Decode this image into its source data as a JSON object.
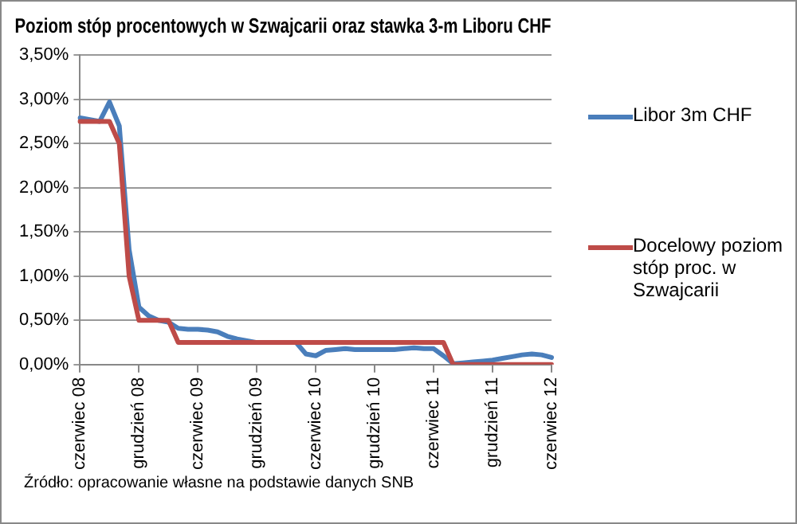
{
  "chart_data": {
    "type": "line",
    "title": "Poziom stóp procentowych w Szwajcarii oraz stawka 3-m Liboru CHF",
    "categories": [
      "czerwiec 08",
      null,
      null,
      null,
      null,
      null,
      "grudzień 08",
      null,
      null,
      null,
      null,
      null,
      "czerwiec 09",
      null,
      null,
      null,
      null,
      null,
      "grudzień 09",
      null,
      null,
      null,
      null,
      null,
      "czerwiec 10",
      null,
      null,
      null,
      null,
      null,
      "grudzień 10",
      null,
      null,
      null,
      null,
      null,
      "czerwiec 11",
      null,
      null,
      null,
      null,
      null,
      "grudzień 11",
      null,
      null,
      null,
      null,
      null,
      "czerwiec 12"
    ],
    "series": [
      {
        "name": "Libor 3m CHF",
        "color": "#4a7ebb",
        "values": [
          2.79,
          2.77,
          2.75,
          2.97,
          2.7,
          1.3,
          0.65,
          0.55,
          0.5,
          0.48,
          0.41,
          0.4,
          0.4,
          0.39,
          0.37,
          0.32,
          0.29,
          0.27,
          0.25,
          null,
          null,
          null,
          0.25,
          0.12,
          0.1,
          0.16,
          0.17,
          0.18,
          0.17,
          0.17,
          0.17,
          0.17,
          0.17,
          0.18,
          0.19,
          0.18,
          0.18,
          0.1,
          0.01,
          0.02,
          0.03,
          0.04,
          0.05,
          0.07,
          0.09,
          0.11,
          0.12,
          0.11,
          0.08
        ]
      },
      {
        "name": "Docelowy poziom stóp proc. w Szwajcarii",
        "color": "#be4b48",
        "values": [
          2.75,
          2.75,
          2.75,
          2.75,
          2.5,
          1.0,
          0.5,
          0.5,
          0.5,
          0.5,
          0.25,
          0.25,
          0.25,
          0.25,
          0.25,
          0.25,
          0.25,
          0.25,
          0.25,
          0.25,
          0.25,
          0.25,
          0.25,
          0.25,
          0.25,
          0.25,
          0.25,
          0.25,
          0.25,
          0.25,
          0.25,
          0.25,
          0.25,
          0.25,
          0.25,
          0.25,
          0.25,
          0.25,
          0,
          0,
          0,
          0,
          0,
          0,
          0,
          0,
          0,
          0,
          0
        ]
      }
    ],
    "ylim": [
      0,
      3.5
    ],
    "yticks": [
      {
        "value": 0,
        "label": "0,00%"
      },
      {
        "value": 0.5,
        "label": "0,50%"
      },
      {
        "value": 1,
        "label": "1,00%"
      },
      {
        "value": 1.5,
        "label": "1,50%"
      },
      {
        "value": 2,
        "label": "2,00%"
      },
      {
        "value": 2.5,
        "label": "2,50%"
      },
      {
        "value": 3,
        "label": "3,00%"
      },
      {
        "value": 3.5,
        "label": "3,50%"
      }
    ],
    "grid": "y",
    "legend": "right",
    "marker": "none",
    "line_style": "solid",
    "annotations": [
      "Źródło: opracowanie własne na podstawie danych SNB"
    ]
  }
}
